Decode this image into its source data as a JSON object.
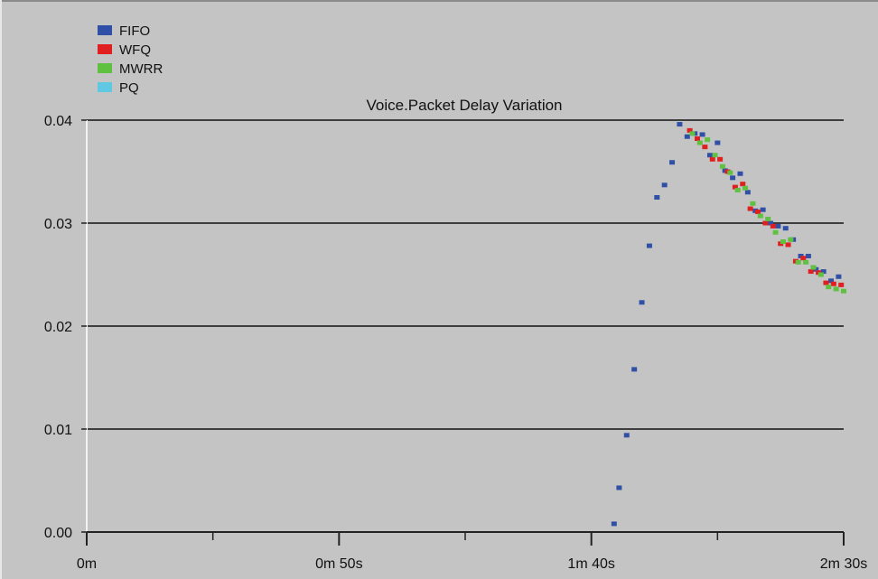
{
  "chart_data": {
    "type": "scatter",
    "title": "Voice.Packet Delay Variation",
    "xlabel": "",
    "ylabel": "",
    "xlim": [
      0,
      150
    ],
    "ylim": [
      0,
      0.04
    ],
    "x_ticks": [
      {
        "value": 0,
        "label": "0m"
      },
      {
        "value": 50,
        "label": "0m 50s"
      },
      {
        "value": 100,
        "label": "1m 40s"
      },
      {
        "value": 150,
        "label": "2m 30s"
      }
    ],
    "x_minor_ticks": [
      25,
      75,
      125
    ],
    "y_ticks": [
      {
        "value": 0,
        "label": "0.00"
      },
      {
        "value": 0.01,
        "label": "0.01"
      },
      {
        "value": 0.02,
        "label": "0.02"
      },
      {
        "value": 0.03,
        "label": "0.03"
      },
      {
        "value": 0.04,
        "label": "0.04"
      }
    ],
    "grid": "horizontal",
    "legend": "top-left",
    "series": [
      {
        "name": "FIFO",
        "color": "#3050a8",
        "points": [
          [
            104.5,
            0.0008
          ],
          [
            105.5,
            0.0043
          ],
          [
            107,
            0.0094
          ],
          [
            108.5,
            0.0158
          ],
          [
            110,
            0.0223
          ],
          [
            111.5,
            0.0278
          ],
          [
            113,
            0.0325
          ],
          [
            114.5,
            0.0337
          ],
          [
            116,
            0.0359
          ],
          [
            117.5,
            0.0396
          ],
          [
            119,
            0.0384
          ],
          [
            120.5,
            0.0387
          ],
          [
            122,
            0.0386
          ],
          [
            123.5,
            0.0366
          ],
          [
            125,
            0.0378
          ],
          [
            126.5,
            0.0351
          ],
          [
            128,
            0.0344
          ],
          [
            129.5,
            0.0348
          ],
          [
            131,
            0.033
          ],
          [
            132.5,
            0.0312
          ],
          [
            134,
            0.0313
          ],
          [
            135.5,
            0.03
          ],
          [
            137,
            0.0297
          ],
          [
            138.5,
            0.0295
          ],
          [
            140,
            0.0284
          ],
          [
            141.5,
            0.0268
          ],
          [
            143,
            0.0268
          ],
          [
            144.5,
            0.0255
          ],
          [
            146,
            0.0253
          ],
          [
            147.5,
            0.0244
          ],
          [
            149,
            0.0248
          ]
        ]
      },
      {
        "name": "WFQ",
        "color": "#e02020",
        "points": [
          [
            119.5,
            0.039
          ],
          [
            121,
            0.0382
          ],
          [
            122.5,
            0.0374
          ],
          [
            124,
            0.0362
          ],
          [
            125.5,
            0.0362
          ],
          [
            127,
            0.035
          ],
          [
            128.5,
            0.0335
          ],
          [
            130,
            0.0338
          ],
          [
            131.5,
            0.0314
          ],
          [
            133,
            0.0311
          ],
          [
            134.5,
            0.03
          ],
          [
            136,
            0.0297
          ],
          [
            137.5,
            0.028
          ],
          [
            139,
            0.0279
          ],
          [
            140.5,
            0.0263
          ],
          [
            142,
            0.0266
          ],
          [
            143.5,
            0.0253
          ],
          [
            145,
            0.0252
          ],
          [
            146.5,
            0.0242
          ],
          [
            148,
            0.0241
          ],
          [
            149.5,
            0.024
          ]
        ]
      },
      {
        "name": "MWRR",
        "color": "#60c040",
        "points": [
          [
            120,
            0.0387
          ],
          [
            121.5,
            0.0378
          ],
          [
            123,
            0.0381
          ],
          [
            124.5,
            0.0366
          ],
          [
            126,
            0.0355
          ],
          [
            127.5,
            0.0349
          ],
          [
            129,
            0.0332
          ],
          [
            130.5,
            0.0334
          ],
          [
            132,
            0.0319
          ],
          [
            133.5,
            0.0307
          ],
          [
            135,
            0.0304
          ],
          [
            136.5,
            0.0291
          ],
          [
            138,
            0.0282
          ],
          [
            139.5,
            0.0284
          ],
          [
            141,
            0.0262
          ],
          [
            142.5,
            0.0262
          ],
          [
            144,
            0.0257
          ],
          [
            145.5,
            0.025
          ],
          [
            147,
            0.0238
          ],
          [
            148.5,
            0.0236
          ],
          [
            150,
            0.0234
          ]
        ]
      },
      {
        "name": "PQ",
        "color": "#60c8e0",
        "points": []
      }
    ]
  }
}
